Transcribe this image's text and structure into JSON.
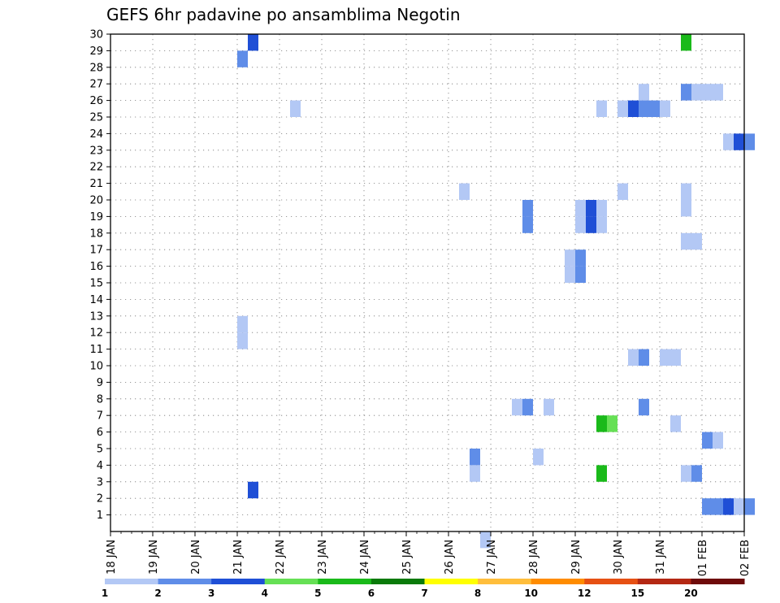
{
  "chart_data": {
    "type": "heatmap",
    "title": "GEFS 6hr padavine po ansamblima Negotin",
    "xlabel": "",
    "ylabel": "",
    "x_tick_labels": [
      "18 JAN",
      "19 JAN",
      "20 JAN",
      "21 JAN",
      "22 JAN",
      "23 JAN",
      "24 JAN",
      "25 JAN",
      "26 JAN",
      "27 JAN",
      "28 JAN",
      "29 JAN",
      "30 JAN",
      "31 JAN",
      "01 FEB",
      "02 FEB"
    ],
    "y_tick_labels": [
      "1",
      "2",
      "3",
      "4",
      "5",
      "6",
      "7",
      "8",
      "9",
      "10",
      "11",
      "12",
      "13",
      "14",
      "15",
      "16",
      "17",
      "18",
      "19",
      "20",
      "21",
      "22",
      "23",
      "24",
      "25",
      "26",
      "27",
      "28",
      "29",
      "30"
    ],
    "ylim": [
      0,
      30
    ],
    "grid": true,
    "colorbar": {
      "position": "bottom",
      "labels": [
        "1",
        "2",
        "3",
        "4",
        "5",
        "6",
        "7",
        "8",
        "10",
        "12",
        "15",
        "20"
      ],
      "colors": [
        "#b3c8f5",
        "#5f8de8",
        "#1f4fd6",
        "#66e055",
        "#1aba1a",
        "#0a7a0a",
        "#ffff00",
        "#ffbe3c",
        "#ff8c00",
        "#e65014",
        "#b42814",
        "#6e0a0a"
      ]
    },
    "cell_encoding": "each cell = [member (y), 6-hour step index from 18 JAN 00Z (x), precipitation class]",
    "cells": [
      [
        30,
        13,
        3
      ],
      [
        30,
        54,
        5
      ],
      [
        29,
        12,
        2
      ],
      [
        27,
        50,
        1
      ],
      [
        27,
        54,
        2
      ],
      [
        27,
        55,
        1
      ],
      [
        27,
        56,
        1
      ],
      [
        27,
        57,
        1
      ],
      [
        26,
        17,
        1
      ],
      [
        26,
        46,
        1
      ],
      [
        26,
        48,
        1
      ],
      [
        26,
        49,
        3
      ],
      [
        26,
        50,
        2
      ],
      [
        26,
        51,
        2
      ],
      [
        26,
        52,
        1
      ],
      [
        24,
        58,
        1
      ],
      [
        24,
        59,
        3
      ],
      [
        24,
        60,
        2
      ],
      [
        21,
        33,
        1
      ],
      [
        21,
        48,
        1
      ],
      [
        21,
        54,
        1
      ],
      [
        20,
        39,
        2
      ],
      [
        20,
        44,
        1
      ],
      [
        20,
        45,
        3
      ],
      [
        20,
        46,
        1
      ],
      [
        20,
        54,
        1
      ],
      [
        19,
        39,
        2
      ],
      [
        19,
        44,
        1
      ],
      [
        19,
        45,
        3
      ],
      [
        19,
        46,
        1
      ],
      [
        18,
        54,
        1
      ],
      [
        18,
        55,
        1
      ],
      [
        17,
        43,
        1
      ],
      [
        17,
        44,
        2
      ],
      [
        16,
        43,
        1
      ],
      [
        16,
        44,
        2
      ],
      [
        13,
        12,
        1
      ],
      [
        12,
        12,
        1
      ],
      [
        11,
        49,
        1
      ],
      [
        11,
        50,
        2
      ],
      [
        11,
        52,
        1
      ],
      [
        11,
        53,
        1
      ],
      [
        8,
        38,
        1
      ],
      [
        8,
        39,
        2
      ],
      [
        8,
        41,
        1
      ],
      [
        8,
        50,
        2
      ],
      [
        7,
        46,
        5
      ],
      [
        7,
        47,
        4
      ],
      [
        7,
        53,
        1
      ],
      [
        6,
        56,
        2
      ],
      [
        6,
        57,
        1
      ],
      [
        5,
        34,
        2
      ],
      [
        5,
        40,
        1
      ],
      [
        4,
        34,
        1
      ],
      [
        4,
        46,
        5
      ],
      [
        4,
        54,
        1
      ],
      [
        4,
        55,
        2
      ],
      [
        3,
        13,
        3
      ],
      [
        2,
        56,
        2
      ],
      [
        2,
        57,
        2
      ],
      [
        2,
        58,
        3
      ],
      [
        2,
        59,
        1
      ],
      [
        2,
        60,
        2
      ],
      [
        0,
        35,
        1
      ]
    ]
  }
}
